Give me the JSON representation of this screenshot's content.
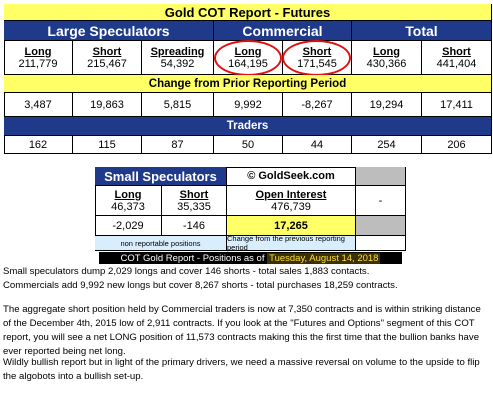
{
  "title": "Gold COT Report - Futures",
  "groups": {
    "large": "Large Speculators",
    "commercial": "Commercial",
    "total": "Total"
  },
  "cols": {
    "long": "Long",
    "short": "Short",
    "spreading": "Spreading"
  },
  "positions": {
    "large_long": "211,779",
    "large_short": "215,467",
    "large_spreading": "54,392",
    "comm_long": "164,195",
    "comm_short": "171,545",
    "total_long": "430,366",
    "total_short": "441,404"
  },
  "change_header": "Change from Prior Reporting Period",
  "changes": {
    "large_long": "3,487",
    "large_short": "19,863",
    "large_spreading": "5,815",
    "comm_long": "9,992",
    "comm_short": "-8,267",
    "total_long": "19,294",
    "total_short": "17,411"
  },
  "traders_header": "Traders",
  "traders": {
    "large_long": "162",
    "large_short": "115",
    "large_spreading": "87",
    "comm_long": "50",
    "comm_short": "44",
    "total_long": "254",
    "total_short": "206"
  },
  "small": {
    "header": "Small Speculators",
    "watermark": "© GoldSeek.com",
    "long_label": "Long",
    "short_label": "Short",
    "oi_label": "Open Interest",
    "long": "46,373",
    "short": "35,335",
    "oi": "476,739",
    "long_change": "-2,029",
    "short_change": "-146",
    "oi_change": "17,265",
    "dash1": "-",
    "dash2": "-",
    "note_left": "non reportable positions",
    "note_right": "Change from the previous reporting period"
  },
  "footer": {
    "prefix": "COT Gold Report - Positions as of",
    "date": "Tuesday, August 14, 2018"
  },
  "paragraphs": [
    "Small speculators dump 2,029 longs and cover 146 shorts - total sales 1,883 contacts.",
    "Commercials add 9,992 new longs but cover 8,267 shorts - total purchases 18,259 contracts.",
    "The aggregate short position held by Commercial traders is now at 7,350 contracts and is within striking distance of the December 4th, 2015 low of 2,911 contracts. If you look at the \"Futures and Options\" segment of this COT report, you will see a net LONG position of 11,573 contracts making this the first time that the bullion banks have ever reported being net long.",
    "Wildly bullish report but in light of the primary drivers, we need a massive reversal on volume to the upside to flip the algobots into a bullish set-up."
  ],
  "colors": {
    "header_blue": "#1f3a8a",
    "highlight_yellow": "#ffff66",
    "note_blue": "#d9eefd",
    "ring_red": "#e01010",
    "footer_bg": "#000000",
    "footer_date": "#ffdf3a"
  }
}
